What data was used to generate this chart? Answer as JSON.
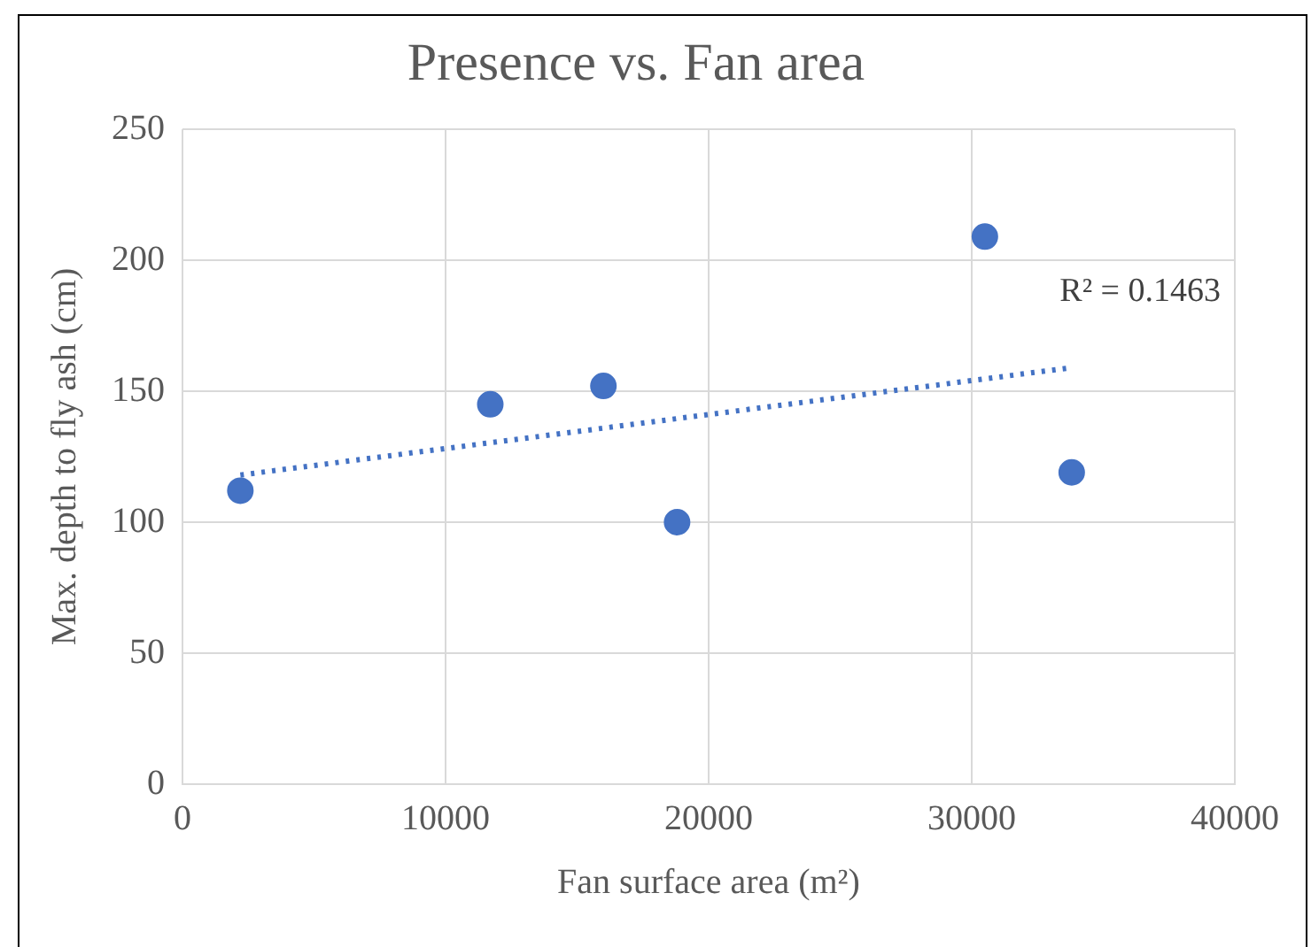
{
  "chart_data": {
    "type": "scatter",
    "title": "Presence vs. Fan area",
    "xlabel": "Fan surface area (m²)",
    "ylabel": "Max. depth to fly ash (cm)",
    "series": [
      {
        "color": "#4472c4",
        "x": [
          2200,
          11700,
          16000,
          18800,
          30500,
          33800
        ],
        "values": [
          112,
          145,
          152,
          100,
          209,
          119
        ],
        "marker": "circle"
      },
      {
        "type": "line",
        "color": "#4472c4",
        "x": [
          2200,
          33800
        ],
        "values": [
          118,
          159
        ],
        "line_style": "dotted",
        "marker": "none"
      }
    ],
    "xlim": [
      0,
      40000
    ],
    "xticks": [
      0,
      10000,
      20000,
      30000,
      40000
    ],
    "ylim": [
      0,
      250
    ],
    "yticks": [
      0,
      50,
      100,
      150,
      200,
      250
    ],
    "grid": true,
    "legend": false,
    "annotations": [
      "R² = 0.1463"
    ]
  }
}
